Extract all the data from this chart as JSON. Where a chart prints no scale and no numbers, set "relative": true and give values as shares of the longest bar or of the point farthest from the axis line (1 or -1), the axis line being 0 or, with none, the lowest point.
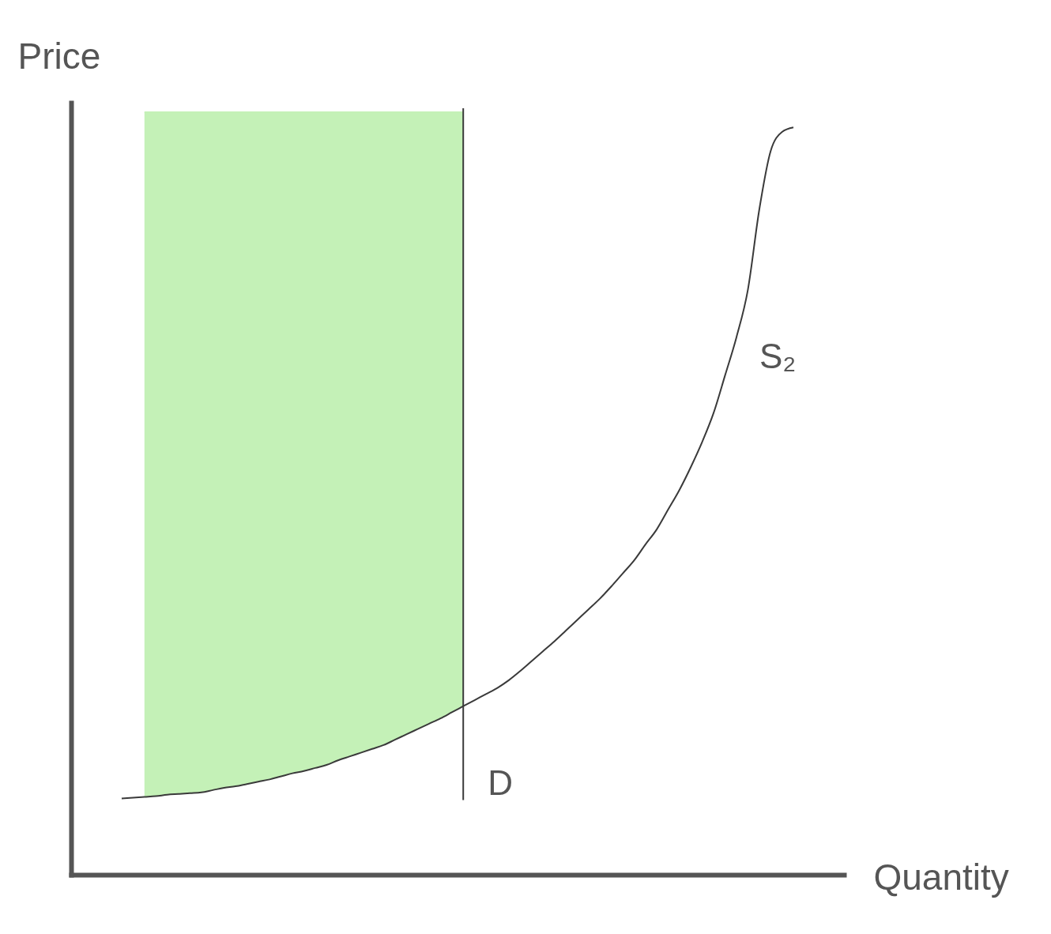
{
  "chart_data": {
    "type": "line",
    "relative": true,
    "xlabel": "Quantity",
    "ylabel": "Price",
    "annotations": [
      "D"
    ],
    "categories": [
      null,
      null,
      null,
      null,
      null,
      null,
      null,
      null,
      null,
      null,
      null,
      null,
      null,
      null,
      null,
      null,
      null,
      null,
      null,
      null,
      null,
      null,
      null,
      null,
      null,
      null,
      null,
      null,
      null,
      null,
      null,
      null,
      null,
      null,
      null,
      null,
      null,
      null,
      null,
      null,
      null,
      null,
      null,
      null,
      null,
      null,
      null,
      null,
      null,
      null,
      null,
      null,
      null,
      null,
      null,
      null,
      null,
      null,
      null,
      null
    ],
    "series": [
      {
        "color": "#c4f1b7",
        "values": [
          null,
          null,
          1.0,
          1.0,
          1.0,
          1.0,
          1.0,
          1.0,
          1.0,
          1.0,
          1.0,
          1.0,
          1.0,
          1.0,
          1.0,
          1.0,
          1.0,
          1.0,
          1.0,
          1.0,
          1.0,
          1.0,
          1.0,
          1.0,
          1.0,
          1.0,
          1.0,
          1.0,
          1.0,
          1.0,
          1.0,
          null,
          null,
          null,
          null,
          null,
          null,
          null,
          null,
          null,
          null,
          null,
          null,
          null,
          null,
          null,
          null,
          null,
          null,
          null,
          null,
          null,
          null,
          null,
          null,
          null,
          null,
          null,
          null,
          null
        ],
        "lower": [
          null,
          null,
          0.102,
          0.103,
          0.105,
          0.106,
          0.107,
          0.108,
          0.111,
          0.114,
          0.116,
          0.119,
          0.122,
          0.125,
          0.129,
          0.133,
          0.136,
          0.14,
          0.144,
          0.15,
          0.155,
          0.16,
          0.165,
          0.17,
          0.177,
          0.184,
          0.191,
          0.198,
          0.205,
          0.213,
          0.221,
          null,
          null,
          null,
          null,
          null,
          null,
          null,
          null,
          null,
          null,
          null,
          null,
          null,
          null,
          null,
          null,
          null,
          null,
          null,
          null,
          null,
          null,
          null,
          null,
          null,
          null,
          null,
          null,
          null
        ],
        "upper": [
          null,
          null,
          1.0,
          1.0,
          1.0,
          1.0,
          1.0,
          1.0,
          1.0,
          1.0,
          1.0,
          1.0,
          1.0,
          1.0,
          1.0,
          1.0,
          1.0,
          1.0,
          1.0,
          1.0,
          1.0,
          1.0,
          1.0,
          1.0,
          1.0,
          1.0,
          1.0,
          1.0,
          1.0,
          1.0,
          1.0,
          null,
          null,
          null,
          null,
          null,
          null,
          null,
          null,
          null,
          null,
          null,
          null,
          null,
          null,
          null,
          null,
          null,
          null,
          null,
          null,
          null,
          null,
          null,
          null,
          null,
          null,
          null,
          null,
          null
        ]
      },
      {
        "name": "S₂",
        "color": "#3a3a3a",
        "values": [
          0.1,
          0.101,
          0.102,
          0.103,
          0.105,
          0.106,
          0.107,
          0.108,
          0.111,
          0.114,
          0.116,
          0.119,
          0.122,
          0.125,
          0.129,
          0.133,
          0.136,
          0.14,
          0.144,
          0.15,
          0.155,
          0.16,
          0.165,
          0.17,
          0.177,
          0.184,
          0.191,
          0.198,
          0.205,
          0.213,
          0.221,
          0.229,
          0.237,
          0.245,
          0.255,
          0.267,
          0.28,
          0.293,
          0.306,
          0.32,
          0.334,
          0.348,
          0.362,
          0.378,
          0.395,
          0.412,
          0.433,
          0.453,
          0.479,
          0.505,
          0.535,
          0.568,
          0.606,
          0.655,
          0.705,
          0.767,
          0.872,
          0.949,
          0.974,
          0.98
        ]
      }
    ]
  }
}
